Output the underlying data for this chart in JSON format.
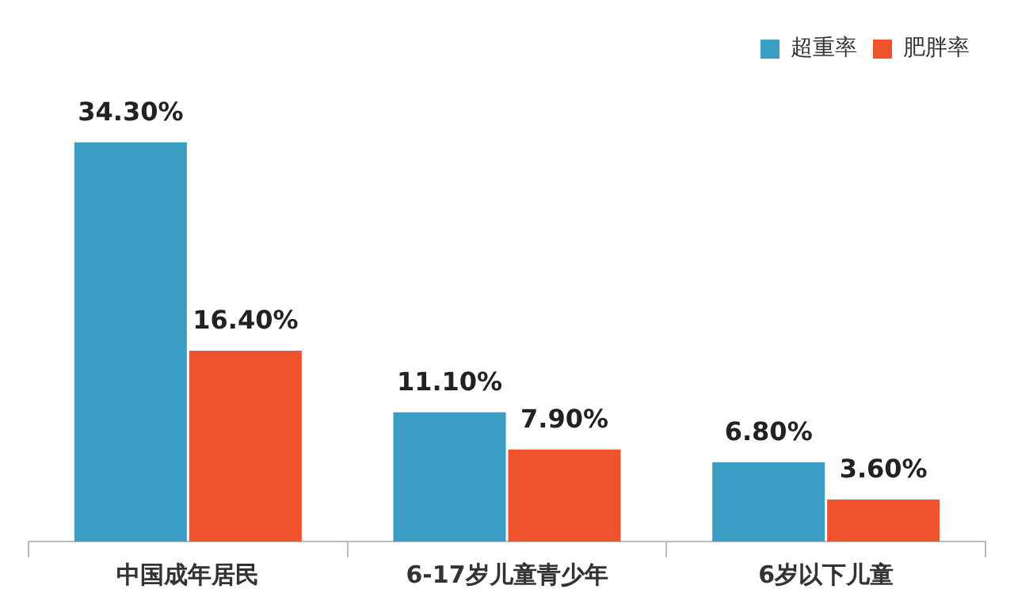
{
  "chart_data": {
    "type": "bar",
    "categories": [
      "中国成年居民",
      "6-17岁儿童青少年",
      "6岁以下儿童"
    ],
    "series": [
      {
        "name": "超重率",
        "color": "#3a9ec4",
        "values": [
          34.3,
          11.1,
          6.8
        ],
        "value_labels": [
          "34.30%",
          "11.10%",
          "6.80%"
        ]
      },
      {
        "name": "肥胖率",
        "color": "#f0522e",
        "values": [
          16.4,
          7.9,
          3.6
        ],
        "value_labels": [
          "16.40%",
          "7.90%",
          "3.60%"
        ]
      }
    ],
    "legend": "top right",
    "grid": false
  }
}
